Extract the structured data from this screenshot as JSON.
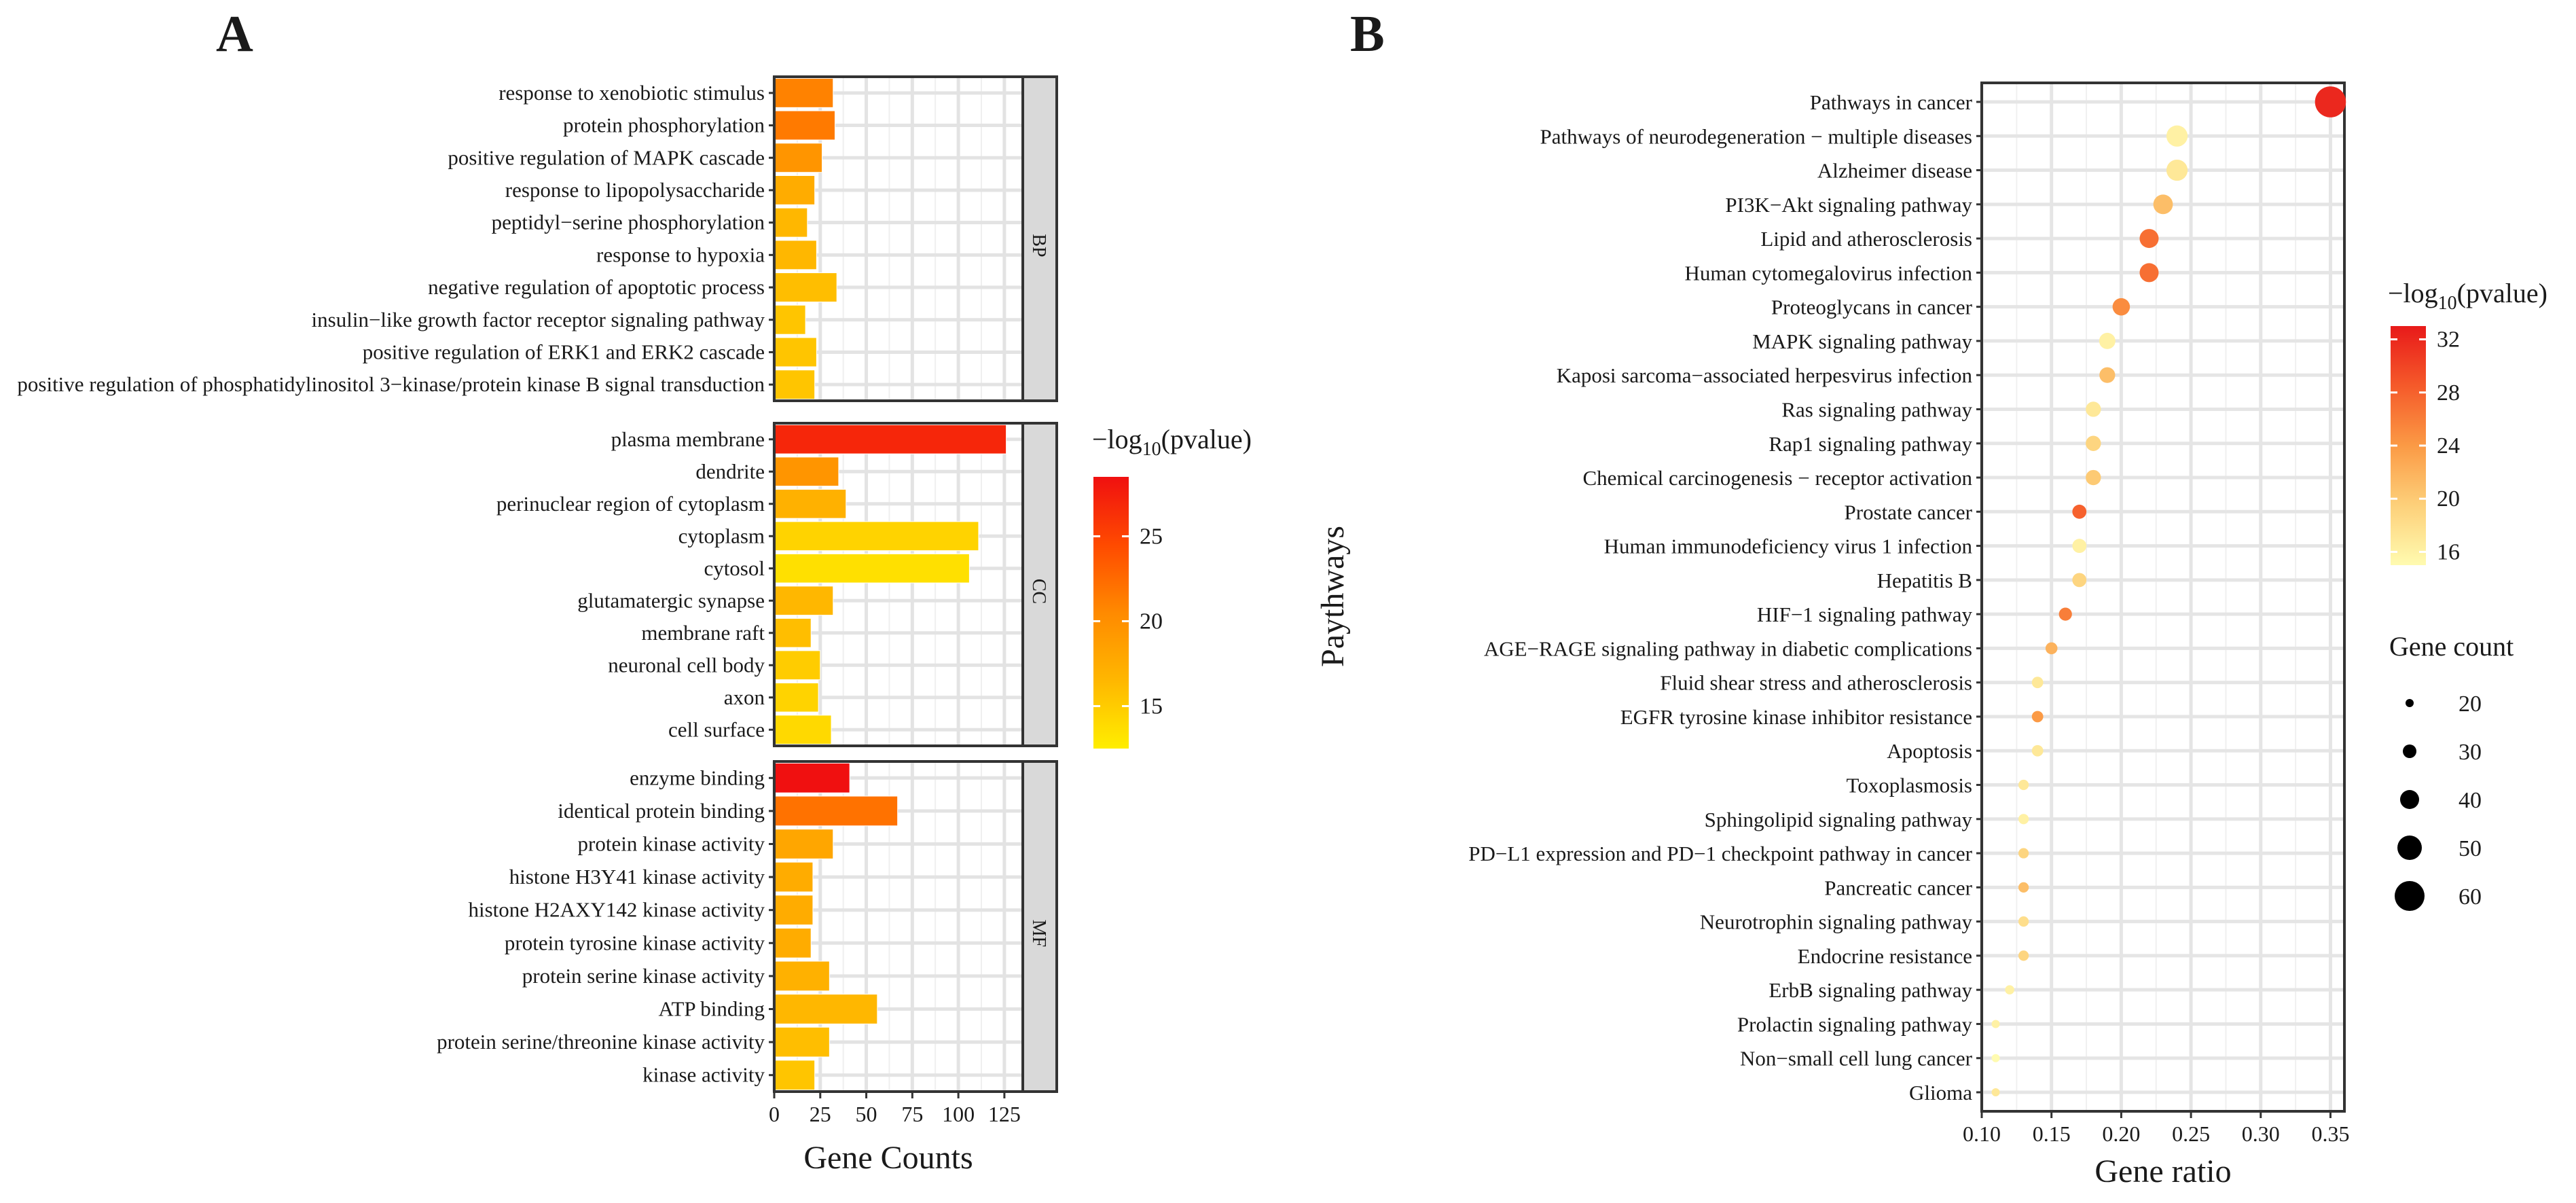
{
  "chart_data": [
    {
      "panel": "A",
      "type": "bar",
      "orientation": "horizontal",
      "xlabel": "Gene Counts",
      "xlim": [
        0,
        135
      ],
      "xticks": [
        0,
        25,
        50,
        75,
        100,
        125
      ],
      "color_legend": {
        "title_prefix": "−log",
        "title_sub": "10",
        "title_suffix": "(pvalue)",
        "range": [
          12.5,
          28.5
        ],
        "ticks": [
          15,
          20,
          25
        ],
        "colors": [
          "#ffee00",
          "#ffb700",
          "#ff8a00",
          "#ff4a00",
          "#f01010"
        ]
      },
      "facets": [
        {
          "name": "BP",
          "categories": [
            "response to xenobiotic stimulus",
            "protein phosphorylation",
            "positive regulation of MAPK cascade",
            "response to lipopolysaccharide",
            "peptidyl−serine phosphorylation",
            "response to hypoxia",
            "negative regulation of apoptotic process",
            "insulin−like growth factor receptor signaling pathway",
            "positive regulation of ERK1 and ERK2 cascade",
            "positive regulation of phosphatidylinositol 3−kinase/protein kinase B signal transduction"
          ],
          "values": [
            32,
            33,
            26,
            22,
            18,
            23,
            34,
            17,
            23,
            22
          ],
          "pvalue": [
            21.0,
            21.5,
            19.5,
            17.5,
            16.5,
            16.5,
            16.0,
            15.5,
            15.5,
            15.5
          ]
        },
        {
          "name": "CC",
          "categories": [
            "plasma membrane",
            "dendrite",
            "perinuclear region of cytoplasm",
            "cytoplasm",
            "cytosol",
            "glutamatergic synapse",
            "membrane raft",
            "neuronal cell body",
            "axon",
            "cell surface"
          ],
          "values": [
            126,
            35,
            39,
            111,
            106,
            32,
            20,
            25,
            24,
            31
          ],
          "pvalue": [
            27.0,
            19.5,
            17.0,
            14.5,
            13.5,
            16.5,
            16.0,
            15.0,
            14.5,
            14.0
          ]
        },
        {
          "name": "MF",
          "categories": [
            "enzyme binding",
            "identical protein binding",
            "protein kinase activity",
            "histone H3Y41 kinase activity",
            "histone H2AXY142 kinase activity",
            "protein tyrosine kinase activity",
            "protein serine kinase activity",
            "ATP binding",
            "protein serine/threonine kinase activity",
            "kinase activity"
          ],
          "values": [
            41,
            67,
            32,
            21,
            21,
            20,
            30,
            56,
            30,
            22
          ],
          "pvalue": [
            28.5,
            22.0,
            18.0,
            17.5,
            17.5,
            17.5,
            17.0,
            16.5,
            16.0,
            15.5
          ]
        }
      ]
    },
    {
      "panel": "B",
      "type": "scatter",
      "xlabel": "Gene ratio",
      "ylabel": "Paythways",
      "xlim": [
        0.1,
        0.36
      ],
      "xticks": [
        0.1,
        0.15,
        0.2,
        0.25,
        0.3,
        0.35
      ],
      "xtick_labels": [
        "0.10",
        "0.15",
        "0.20",
        "0.25",
        "0.30",
        "0.35"
      ],
      "color_legend": {
        "title_prefix": "−log",
        "title_sub": "10",
        "title_suffix": "(pvalue)",
        "range": [
          15,
          33
        ],
        "ticks": [
          16,
          20,
          24,
          28,
          32
        ],
        "colors": [
          "#fffbb0",
          "#fdd07a",
          "#fb9a45",
          "#f55a2a",
          "#e81a1a"
        ]
      },
      "size_legend": {
        "title": "Gene count",
        "values": [
          20,
          30,
          40,
          50,
          60
        ]
      },
      "pathways": [
        "Pathways in cancer",
        "Pathways of neurodegeneration − multiple diseases",
        "Alzheimer disease",
        "PI3K−Akt signaling pathway",
        "Lipid and atherosclerosis",
        "Human cytomegalovirus infection",
        "Proteoglycans in cancer",
        "MAPK signaling pathway",
        "Kaposi sarcoma−associated herpesvirus infection",
        "Ras signaling pathway",
        "Rap1 signaling pathway",
        "Chemical carcinogenesis − receptor activation",
        "Prostate cancer",
        "Human immunodeficiency virus 1 infection",
        "Hepatitis B",
        "HIF−1 signaling pathway",
        "AGE−RAGE signaling pathway in diabetic complications",
        "Fluid shear stress and atherosclerosis",
        "EGFR tyrosine kinase inhibitor resistance",
        "Apoptosis",
        "Toxoplasmosis",
        "Sphingolipid signaling pathway",
        "PD−L1 expression and PD−1 checkpoint pathway in cancer",
        "Pancreatic cancer",
        "Neurotrophin signaling pathway",
        "Endocrine resistance",
        "ErbB signaling pathway",
        "Prolactin signaling pathway",
        "Non−small cell lung cancer",
        "Glioma"
      ],
      "gene_ratio": [
        0.35,
        0.24,
        0.24,
        0.23,
        0.22,
        0.22,
        0.2,
        0.19,
        0.19,
        0.18,
        0.18,
        0.18,
        0.17,
        0.17,
        0.17,
        0.16,
        0.15,
        0.14,
        0.14,
        0.14,
        0.13,
        0.13,
        0.13,
        0.13,
        0.13,
        0.13,
        0.12,
        0.11,
        0.11,
        0.11
      ],
      "gene_count": [
        62,
        44,
        44,
        41,
        40,
        40,
        37,
        35,
        34,
        33,
        33,
        33,
        31,
        31,
        31,
        29,
        27,
        26,
        26,
        26,
        24,
        24,
        24,
        24,
        24,
        24,
        22,
        20,
        20,
        20
      ],
      "pvalue": [
        32,
        16,
        17,
        21,
        27,
        27,
        25,
        16,
        21,
        17,
        19,
        20,
        28,
        16,
        19,
        26,
        22,
        17,
        24,
        17,
        17,
        16,
        19,
        21,
        18,
        19,
        16,
        16,
        15,
        17
      ]
    }
  ],
  "panel_labels": [
    "A",
    "B"
  ]
}
